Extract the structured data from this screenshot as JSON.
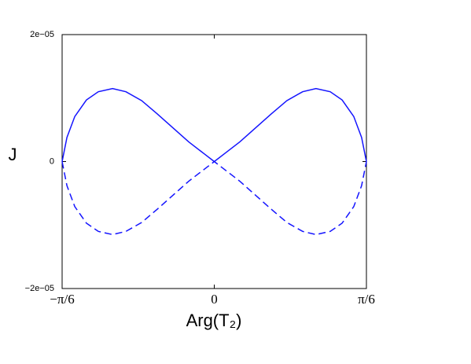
{
  "chart_data": {
    "type": "line",
    "x": [
      -0.5236,
      -0.507,
      -0.48,
      -0.44,
      -0.399,
      -0.35,
      -0.304,
      -0.25,
      -0.196,
      -0.142,
      -0.088,
      -0.034,
      0,
      0.034,
      0.088,
      0.142,
      0.196,
      0.25,
      0.304,
      0.35,
      0.399,
      0.44,
      0.48,
      0.507,
      0.5236
    ],
    "series": [
      {
        "color": "#1414ff",
        "dashed": false,
        "values": [
          0,
          3.8e-06,
          7.1e-06,
          9.7e-06,
          1.1e-05,
          1.15e-05,
          1.1e-05,
          9.6e-06,
          7.5e-06,
          5.3e-06,
          3.1e-06,
          1.2e-06,
          0,
          1.2e-06,
          3.1e-06,
          5.3e-06,
          7.5e-06,
          9.6e-06,
          1.1e-05,
          1.15e-05,
          1.1e-05,
          9.7e-06,
          7.1e-06,
          3.8e-06,
          0
        ]
      },
      {
        "color": "#1414ff",
        "dashed": true,
        "values": [
          0,
          -3.8e-06,
          -7.1e-06,
          -9.7e-06,
          -1.1e-05,
          -1.15e-05,
          -1.1e-05,
          -9.6e-06,
          -7.5e-06,
          -5.3e-06,
          -3.1e-06,
          -1.2e-06,
          0,
          -1.2e-06,
          -3.1e-06,
          -5.3e-06,
          -7.5e-06,
          -9.6e-06,
          -1.1e-05,
          -1.15e-05,
          -1.1e-05,
          -9.7e-06,
          -7.1e-06,
          -3.8e-06,
          0
        ]
      }
    ],
    "xlim": [
      -0.5236,
      0.5236
    ],
    "xticks": [
      {
        "value": -0.5236,
        "label": "−π/6"
      },
      0,
      {
        "value": 0.5236,
        "label": "π/6"
      }
    ],
    "ylim": [
      -2e-05,
      2e-05
    ],
    "yticks": [
      {
        "value": -2e-05,
        "label": "−2e−05"
      },
      0,
      {
        "value": 2e-05,
        "label": "2e−05"
      }
    ],
    "xlabel": "Arg(T₂)",
    "ylabel": "J",
    "grid": false
  }
}
